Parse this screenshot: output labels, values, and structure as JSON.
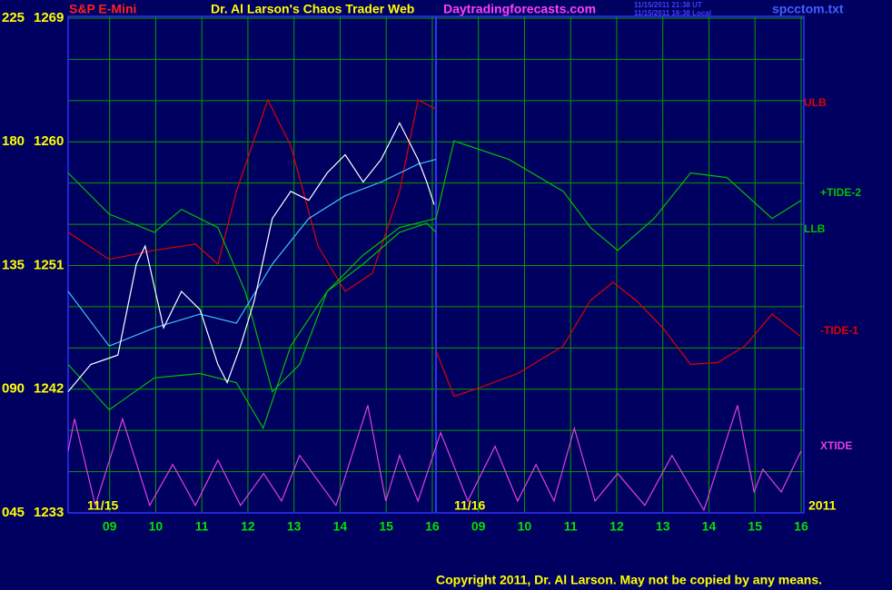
{
  "chart_data": {
    "type": "line",
    "header": {
      "left": "S&P E-Mini",
      "title": "Dr. Al Larson's Chaos Trader Web",
      "site": "Daytradingforecasts.com",
      "stamp_ut": "11/15/2011 21:38 UT",
      "stamp_local": "11/15/2011 16:38 Local",
      "file": "spcctom.txt"
    },
    "date_labels": [
      "11/15",
      "11/16",
      "2011"
    ],
    "copyright": "Copyright 2011, Dr. Al Larson. May not be copied by any means.",
    "xlim": [
      0.1,
      16.06
    ],
    "xticks": [
      {
        "value": 1,
        "label": "09"
      },
      {
        "value": 2,
        "label": "10"
      },
      {
        "value": 3,
        "label": "11"
      },
      {
        "value": 4,
        "label": "12"
      },
      {
        "value": 5,
        "label": "13"
      },
      {
        "value": 6,
        "label": "14"
      },
      {
        "value": 7,
        "label": "15"
      },
      {
        "value": 8,
        "label": "16"
      },
      {
        "value": 9,
        "label": "09"
      },
      {
        "value": 10,
        "label": "10"
      },
      {
        "value": 11,
        "label": "11"
      },
      {
        "value": 12,
        "label": "12"
      },
      {
        "value": 13,
        "label": "13"
      },
      {
        "value": 14,
        "label": "14"
      },
      {
        "value": 15,
        "label": "15"
      },
      {
        "value": 16,
        "label": "16"
      }
    ],
    "ylim": [
      45,
      225
    ],
    "yticks": [
      225,
      180,
      135,
      {
        "value": 90,
        "label": "090"
      },
      {
        "value": 45,
        "label": "045"
      }
    ],
    "y2lim": [
      1233,
      1269
    ],
    "y2ticks": [
      1269,
      1260,
      1251,
      1242,
      1233
    ],
    "ygrid": [
      45,
      60,
      75,
      90,
      105,
      120,
      135,
      150,
      165,
      180,
      195,
      210,
      225
    ],
    "grid": true,
    "series": [
      {
        "name": "ULB",
        "color": "#e00000",
        "x": [
          0.1,
          0.99,
          1.97,
          2.86,
          3.35,
          3.75,
          4.43,
          4.93,
          5.52,
          6.11,
          6.7,
          7.29,
          7.69,
          8.08
        ],
        "values": [
          147.1,
          137.2,
          140.5,
          142.8,
          135.5,
          162.0,
          195.2,
          178.6,
          142.1,
          125.6,
          132.2,
          162.0,
          195.2,
          191.9
        ]
      },
      {
        "name": "+TIDE-2",
        "color": "#00c000",
        "x": [
          0.1,
          0.99,
          1.97,
          2.56,
          3.35,
          3.94,
          4.53,
          5.12,
          5.72,
          6.5,
          7.29,
          8.08,
          8.47,
          9.66,
          10.84,
          11.43,
          12.02,
          12.81,
          13.6,
          14.39,
          15.37,
          16.0
        ],
        "values": [
          168.7,
          153.7,
          147.1,
          155.4,
          148.8,
          125.6,
          89.1,
          99.0,
          125.6,
          138.8,
          148.8,
          152.1,
          180.3,
          173.6,
          162.0,
          148.8,
          140.5,
          152.1,
          168.7,
          167.0,
          152.1,
          158.7
        ]
      },
      {
        "name": "LLB",
        "color": "#00c000",
        "x": [
          0.1,
          0.99,
          1.97,
          2.96,
          3.75,
          4.33,
          4.93,
          5.72,
          6.5,
          7.29,
          7.88,
          8.08
        ],
        "values": [
          99.0,
          82.5,
          94.1,
          95.7,
          92.4,
          75.8,
          105.7,
          125.6,
          135.5,
          147.1,
          150.4,
          147.1
        ]
      },
      {
        "name": "-TIDE-1",
        "color": "#e00000",
        "x": [
          8.08,
          8.47,
          9.07,
          9.85,
          10.84,
          11.43,
          11.92,
          12.42,
          13.0,
          13.6,
          14.19,
          14.78,
          15.37,
          16.0
        ],
        "values": [
          104.0,
          87.4,
          90.8,
          95.7,
          105.7,
          122.3,
          128.9,
          122.3,
          112.3,
          99.0,
          99.7,
          105.7,
          117.3,
          109.0
        ]
      },
      {
        "name": "XTIDE",
        "color": "#e040e0",
        "x": [
          0.1,
          0.24,
          0.69,
          1.28,
          1.87,
          2.37,
          2.86,
          3.35,
          3.84,
          4.34,
          4.73,
          5.12,
          5.91,
          6.6,
          6.99,
          7.29,
          7.69,
          8.18,
          8.77,
          9.36,
          9.85,
          10.25,
          10.64,
          11.08,
          11.53,
          12.02,
          12.61,
          13.2,
          13.89,
          14.62,
          14.98,
          15.17,
          15.57,
          16.0
        ],
        "values": [
          67.6,
          79.2,
          47.7,
          79.2,
          47.7,
          62.6,
          47.7,
          64.2,
          47.7,
          59.3,
          49.3,
          65.9,
          47.7,
          84.1,
          49.3,
          65.9,
          49.3,
          74.2,
          49.3,
          69.2,
          49.3,
          62.6,
          49.3,
          75.8,
          49.3,
          59.3,
          47.7,
          65.9,
          46.0,
          84.1,
          52.6,
          60.9,
          52.6,
          67.6
        ]
      },
      {
        "color": "#40c0ff",
        "x": [
          0.1,
          0.99,
          1.97,
          2.96,
          3.75,
          4.53,
          5.32,
          6.11,
          6.89,
          7.69,
          8.08
        ],
        "values": [
          125.6,
          105.7,
          112.3,
          117.3,
          114.0,
          135.5,
          152.1,
          160.4,
          165.4,
          171.9,
          173.6
        ]
      },
      {
        "color": "#ffffff",
        "x": [
          0.1,
          0.59,
          1.18,
          1.58,
          1.77,
          2.17,
          2.56,
          2.96,
          3.35,
          3.55,
          3.84,
          4.14,
          4.53,
          4.93,
          5.32,
          5.72,
          6.11,
          6.5,
          6.89,
          7.29,
          7.69,
          7.88,
          8.04
        ],
        "values": [
          89.1,
          99.0,
          102.4,
          135.5,
          142.1,
          112.3,
          125.6,
          118.9,
          99.0,
          92.4,
          105.7,
          122.3,
          152.1,
          162.0,
          158.7,
          168.7,
          175.3,
          165.4,
          173.6,
          186.9,
          173.6,
          165.4,
          157.1
        ]
      }
    ]
  }
}
